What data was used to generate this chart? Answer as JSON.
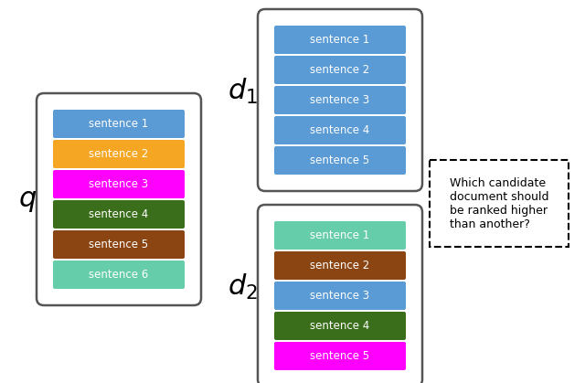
{
  "q_sentences": [
    {
      "label": "sentence 1",
      "color": "#5b9bd5"
    },
    {
      "label": "sentence 2",
      "color": "#f5a623"
    },
    {
      "label": "sentence 3",
      "color": "#ff00ff"
    },
    {
      "label": "sentence 4",
      "color": "#3a6e1a"
    },
    {
      "label": "sentence 5",
      "color": "#8b4513"
    },
    {
      "label": "sentence 6",
      "color": "#66cdaa"
    }
  ],
  "d1_sentences": [
    {
      "label": "sentence 1",
      "color": "#5b9bd5"
    },
    {
      "label": "sentence 2",
      "color": "#5b9bd5"
    },
    {
      "label": "sentence 3",
      "color": "#5b9bd5"
    },
    {
      "label": "sentence 4",
      "color": "#5b9bd5"
    },
    {
      "label": "sentence 5",
      "color": "#5b9bd5"
    }
  ],
  "d2_sentences": [
    {
      "label": "sentence 1",
      "color": "#66cdaa"
    },
    {
      "label": "sentence 2",
      "color": "#8b4513"
    },
    {
      "label": "sentence 3",
      "color": "#5b9bd5"
    },
    {
      "label": "sentence 4",
      "color": "#3a6e1a"
    },
    {
      "label": "sentence 5",
      "color": "#ff00ff"
    }
  ],
  "box_text": "Which candidate\ndocument should\nbe ranked higher\nthan another?",
  "bg_color": "#ffffff",
  "border_color": "#555555",
  "text_color": "white",
  "q_label": "$q$",
  "d1_label": "$d_1$",
  "d2_label": "$d_2$"
}
